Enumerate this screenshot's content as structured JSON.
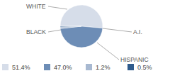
{
  "chart_data": {
    "type": "pie",
    "categories": [
      "WHITE",
      "HISPANIC",
      "BLACK",
      "A.I."
    ],
    "values": [
      51.4,
      47.0,
      1.2,
      0.5
    ],
    "value_labels": [
      "51.4%",
      "47.0%",
      "1.2%",
      "0.5%"
    ],
    "colors": [
      "#d6dde9",
      "#6d8db6",
      "#a8b9d1",
      "#2f5b8c"
    ]
  }
}
